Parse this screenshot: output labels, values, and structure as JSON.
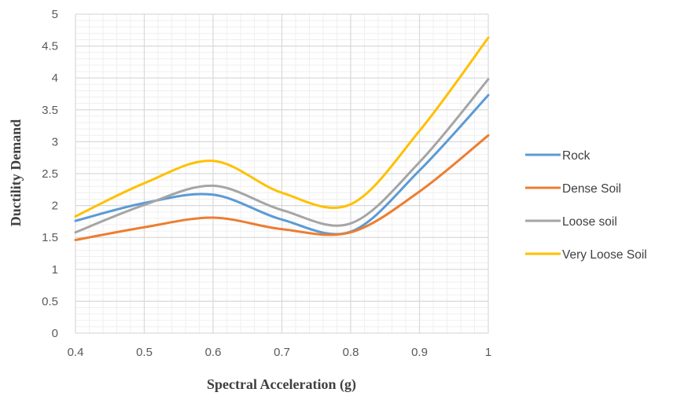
{
  "chart_data": {
    "type": "line",
    "title": "",
    "xlabel": "Spectral Acceleration (g)",
    "ylabel": "Ductility  Demand",
    "xlim": [
      0.4,
      1.0
    ],
    "ylim": [
      0,
      5
    ],
    "xticks": [
      "0.4",
      "0.5",
      "0.6",
      "0.7",
      "0.8",
      "0.9",
      "1"
    ],
    "yticks": [
      "0",
      "0.5",
      "1",
      "1.5",
      "2",
      "2.5",
      "3",
      "3.5",
      "4",
      "4.5",
      "5"
    ],
    "x": [
      0.4,
      0.5,
      0.6,
      0.7,
      0.8,
      0.9,
      1.0
    ],
    "grid": true,
    "smooth": true,
    "legend_position": "right",
    "series": [
      {
        "name": "Rock",
        "color": "#5b9bd5",
        "values": [
          1.76,
          2.04,
          2.17,
          1.78,
          1.59,
          2.55,
          3.73
        ]
      },
      {
        "name": "Dense Soil",
        "color": "#ed7d31",
        "values": [
          1.46,
          1.66,
          1.81,
          1.63,
          1.58,
          2.22,
          3.1
        ]
      },
      {
        "name": "Loose soil",
        "color": "#a5a5a5",
        "values": [
          1.58,
          2.01,
          2.31,
          1.93,
          1.72,
          2.68,
          3.98
        ]
      },
      {
        "name": "Very Loose Soil",
        "color": "#ffc000",
        "values": [
          1.83,
          2.35,
          2.7,
          2.2,
          2.02,
          3.17,
          4.63
        ]
      }
    ]
  }
}
